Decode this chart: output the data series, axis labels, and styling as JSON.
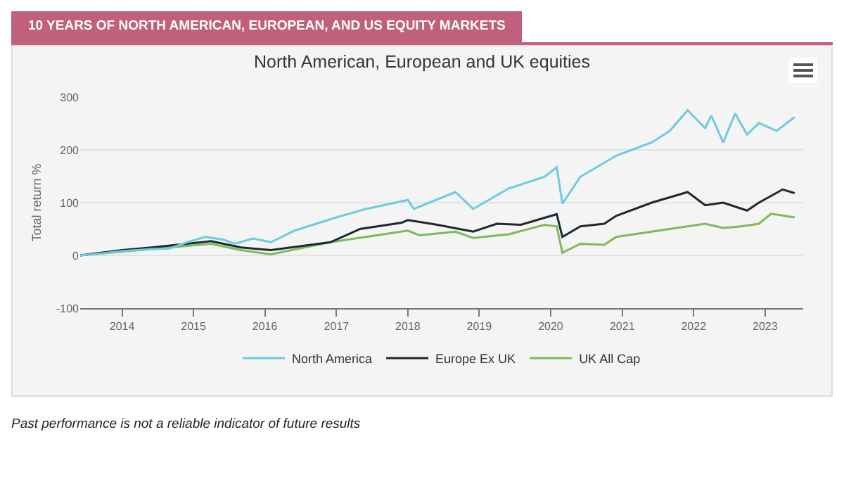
{
  "chart_data": {
    "type": "line",
    "title": "10 YEARS OF NORTH AMERICAN, EUROPEAN, AND US EQUITY MARKETS",
    "subtitle": "North American, European and UK equities",
    "ylabel": "Total return %",
    "ylim": [
      -100,
      300
    ],
    "yticks": [
      -100,
      0,
      100,
      200,
      300
    ],
    "xlim": [
      "2013-06-01",
      "2023-07-15"
    ],
    "xticks": [
      {
        "value": "2014-01-01",
        "label": "2014"
      },
      {
        "value": "2015-01-01",
        "label": "2015"
      },
      {
        "value": "2016-01-01",
        "label": "2016"
      },
      {
        "value": "2017-01-01",
        "label": "2017"
      },
      {
        "value": "2018-01-01",
        "label": "2018"
      },
      {
        "value": "2019-01-01",
        "label": "2019"
      },
      {
        "value": "2020-01-01",
        "label": "2020"
      },
      {
        "value": "2021-01-01",
        "label": "2021"
      },
      {
        "value": "2022-01-01",
        "label": "2022"
      },
      {
        "value": "2023-01-01",
        "label": "2023"
      }
    ],
    "grid": "y",
    "legend": "bottom",
    "marker": "none",
    "line_style": "solid",
    "series": [
      {
        "name": "North America",
        "color": "#6ccbe0",
        "x": [
          "2013-06",
          "2013-09",
          "2014-01",
          "2014-06",
          "2014-09",
          "2014-12",
          "2015-03",
          "2015-06",
          "2015-08",
          "2015-11",
          "2016-02",
          "2016-06",
          "2017-01",
          "2017-06",
          "2018-01",
          "2018-02",
          "2018-09",
          "2018-12",
          "2019-06",
          "2019-12",
          "2020-02",
          "2020-03",
          "2020-06",
          "2020-12",
          "2021-06",
          "2021-09",
          "2021-12",
          "2022-03",
          "2022-04",
          "2022-06",
          "2022-08",
          "2022-10",
          "2022-12",
          "2023-03",
          "2023-06"
        ],
        "values": [
          0,
          3,
          8,
          12,
          13,
          25,
          35,
          30,
          22,
          32,
          25,
          47,
          72,
          88,
          105,
          88,
          120,
          88,
          127,
          149,
          167,
          98,
          149,
          189,
          214,
          236,
          275,
          241,
          265,
          214,
          269,
          229,
          251,
          236,
          262
        ]
      },
      {
        "name": "Europe Ex UK",
        "color": "#1c2833",
        "x": [
          "2013-06",
          "2014-01",
          "2014-06",
          "2015-04",
          "2015-09",
          "2016-02",
          "2016-12",
          "2017-05",
          "2017-12",
          "2018-01",
          "2018-06",
          "2018-12",
          "2019-04",
          "2019-08",
          "2020-02",
          "2020-03",
          "2020-06",
          "2020-10",
          "2020-12",
          "2021-06",
          "2021-12",
          "2022-03",
          "2022-06",
          "2022-10",
          "2022-12",
          "2023-04",
          "2023-06"
        ],
        "values": [
          0,
          10,
          15,
          27,
          15,
          10,
          25,
          50,
          62,
          67,
          58,
          45,
          60,
          58,
          78,
          35,
          55,
          60,
          75,
          100,
          120,
          95,
          100,
          85,
          100,
          125,
          118
        ]
      },
      {
        "name": "UK All Cap",
        "color": "#7dbb56",
        "x": [
          "2013-06",
          "2014-06",
          "2015-04",
          "2015-09",
          "2016-02",
          "2016-12",
          "2017-06",
          "2018-01",
          "2018-03",
          "2018-09",
          "2018-12",
          "2019-06",
          "2019-12",
          "2020-02",
          "2020-03",
          "2020-06",
          "2020-10",
          "2020-12",
          "2021-06",
          "2021-12",
          "2022-03",
          "2022-06",
          "2022-09",
          "2022-12",
          "2023-02",
          "2023-06"
        ],
        "values": [
          0,
          12,
          22,
          10,
          2,
          25,
          35,
          47,
          38,
          45,
          33,
          40,
          58,
          55,
          5,
          22,
          20,
          35,
          45,
          55,
          60,
          52,
          55,
          60,
          79,
          72
        ]
      }
    ],
    "annotations": [
      "Past performance is not a reliable indicator of future results"
    ]
  }
}
